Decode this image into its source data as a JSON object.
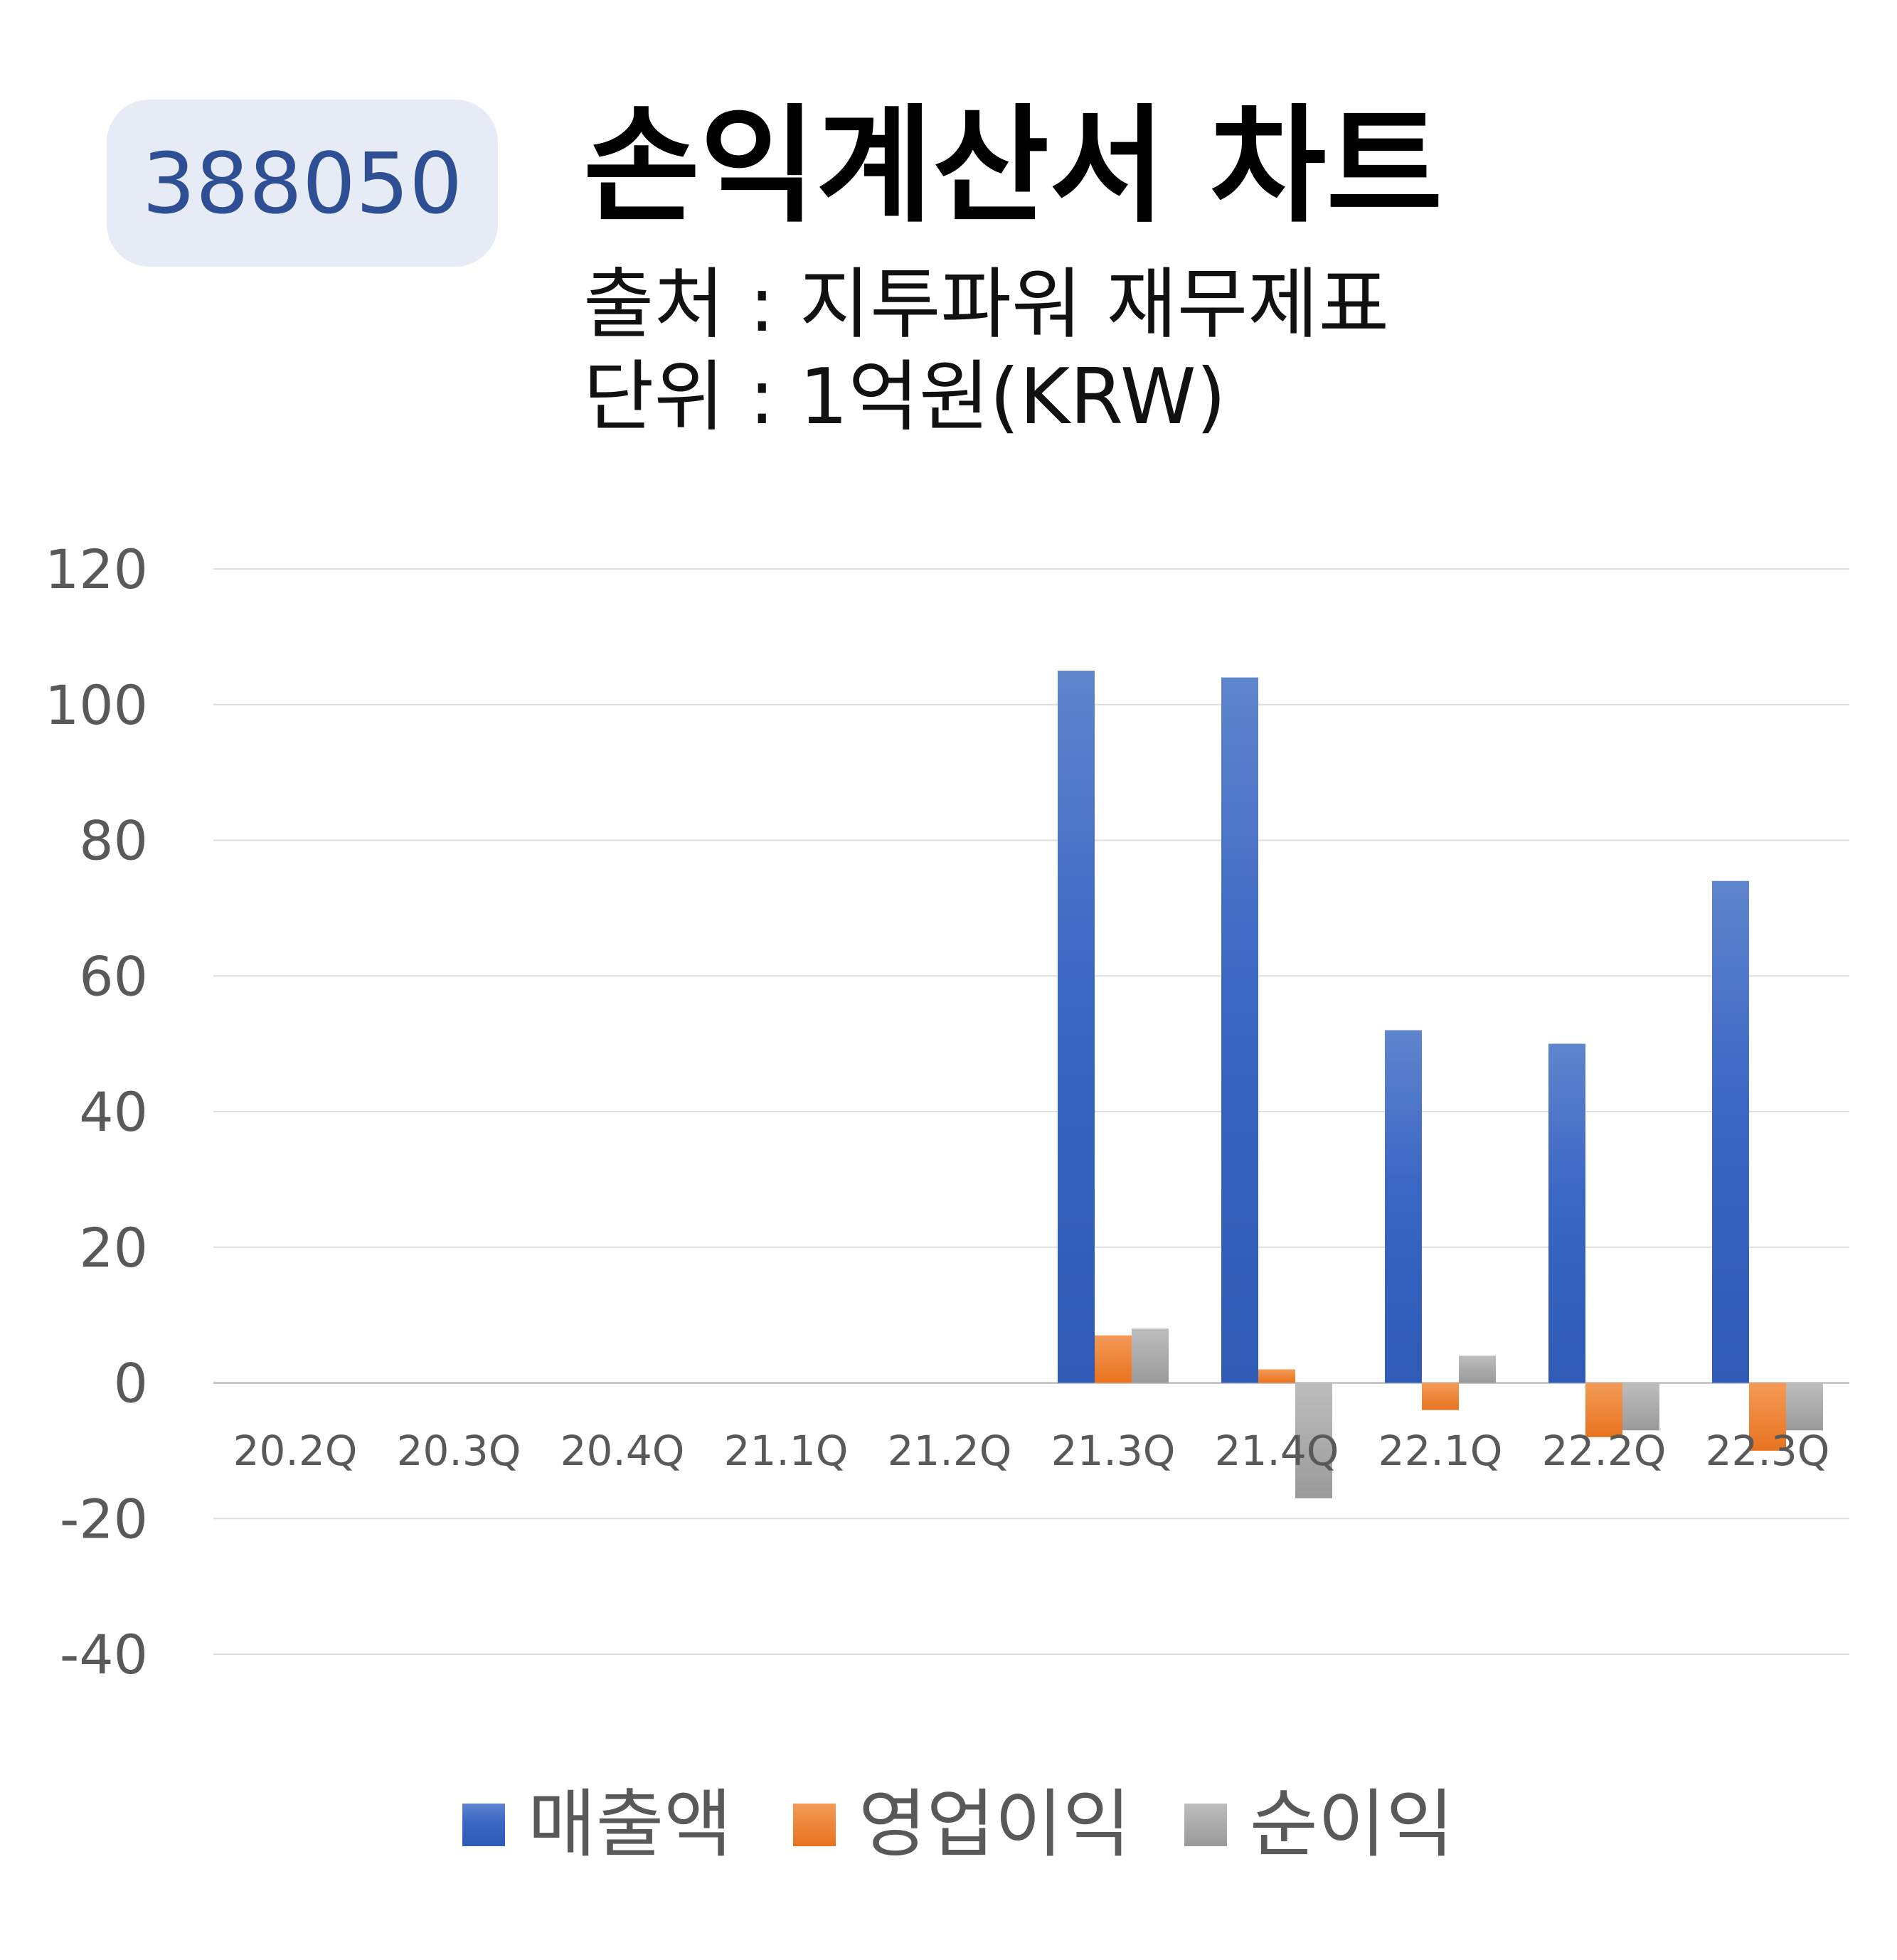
{
  "badge": "388050",
  "header": {
    "title": "손익계산서 차트",
    "source": "출처 : 지투파워 재무제표",
    "unit": "단위 : 1억원(KRW)"
  },
  "colors": {
    "매출액": "#3a66c4",
    "영업이익": "#ed7d31",
    "순이익": "#a5a5a5",
    "badge_bg": "#e6ebf5",
    "badge_text": "#2f4f94"
  },
  "chart_data": {
    "type": "bar",
    "title": "손익계산서 차트",
    "categories": [
      "20.2Q",
      "20.3Q",
      "20.4Q",
      "21.1Q",
      "21.2Q",
      "21.3Q",
      "21.4Q",
      "22.1Q",
      "22.2Q",
      "22.3Q"
    ],
    "series": [
      {
        "name": "매출액",
        "values": [
          0,
          0,
          0,
          0,
          0,
          105,
          104,
          52,
          50,
          74
        ]
      },
      {
        "name": "영업이익",
        "values": [
          0,
          0,
          0,
          0,
          0,
          7,
          2,
          -4,
          -8,
          -10
        ]
      },
      {
        "name": "순이익",
        "values": [
          0,
          0,
          0,
          0,
          0,
          8,
          -17,
          4,
          -7,
          -7
        ]
      }
    ],
    "ylim": [
      -40,
      120
    ],
    "yticks": [
      "-40",
      "-20",
      "0",
      "20",
      "40",
      "60",
      "80",
      "100",
      "120"
    ],
    "grid": true,
    "legend": "bottom"
  }
}
